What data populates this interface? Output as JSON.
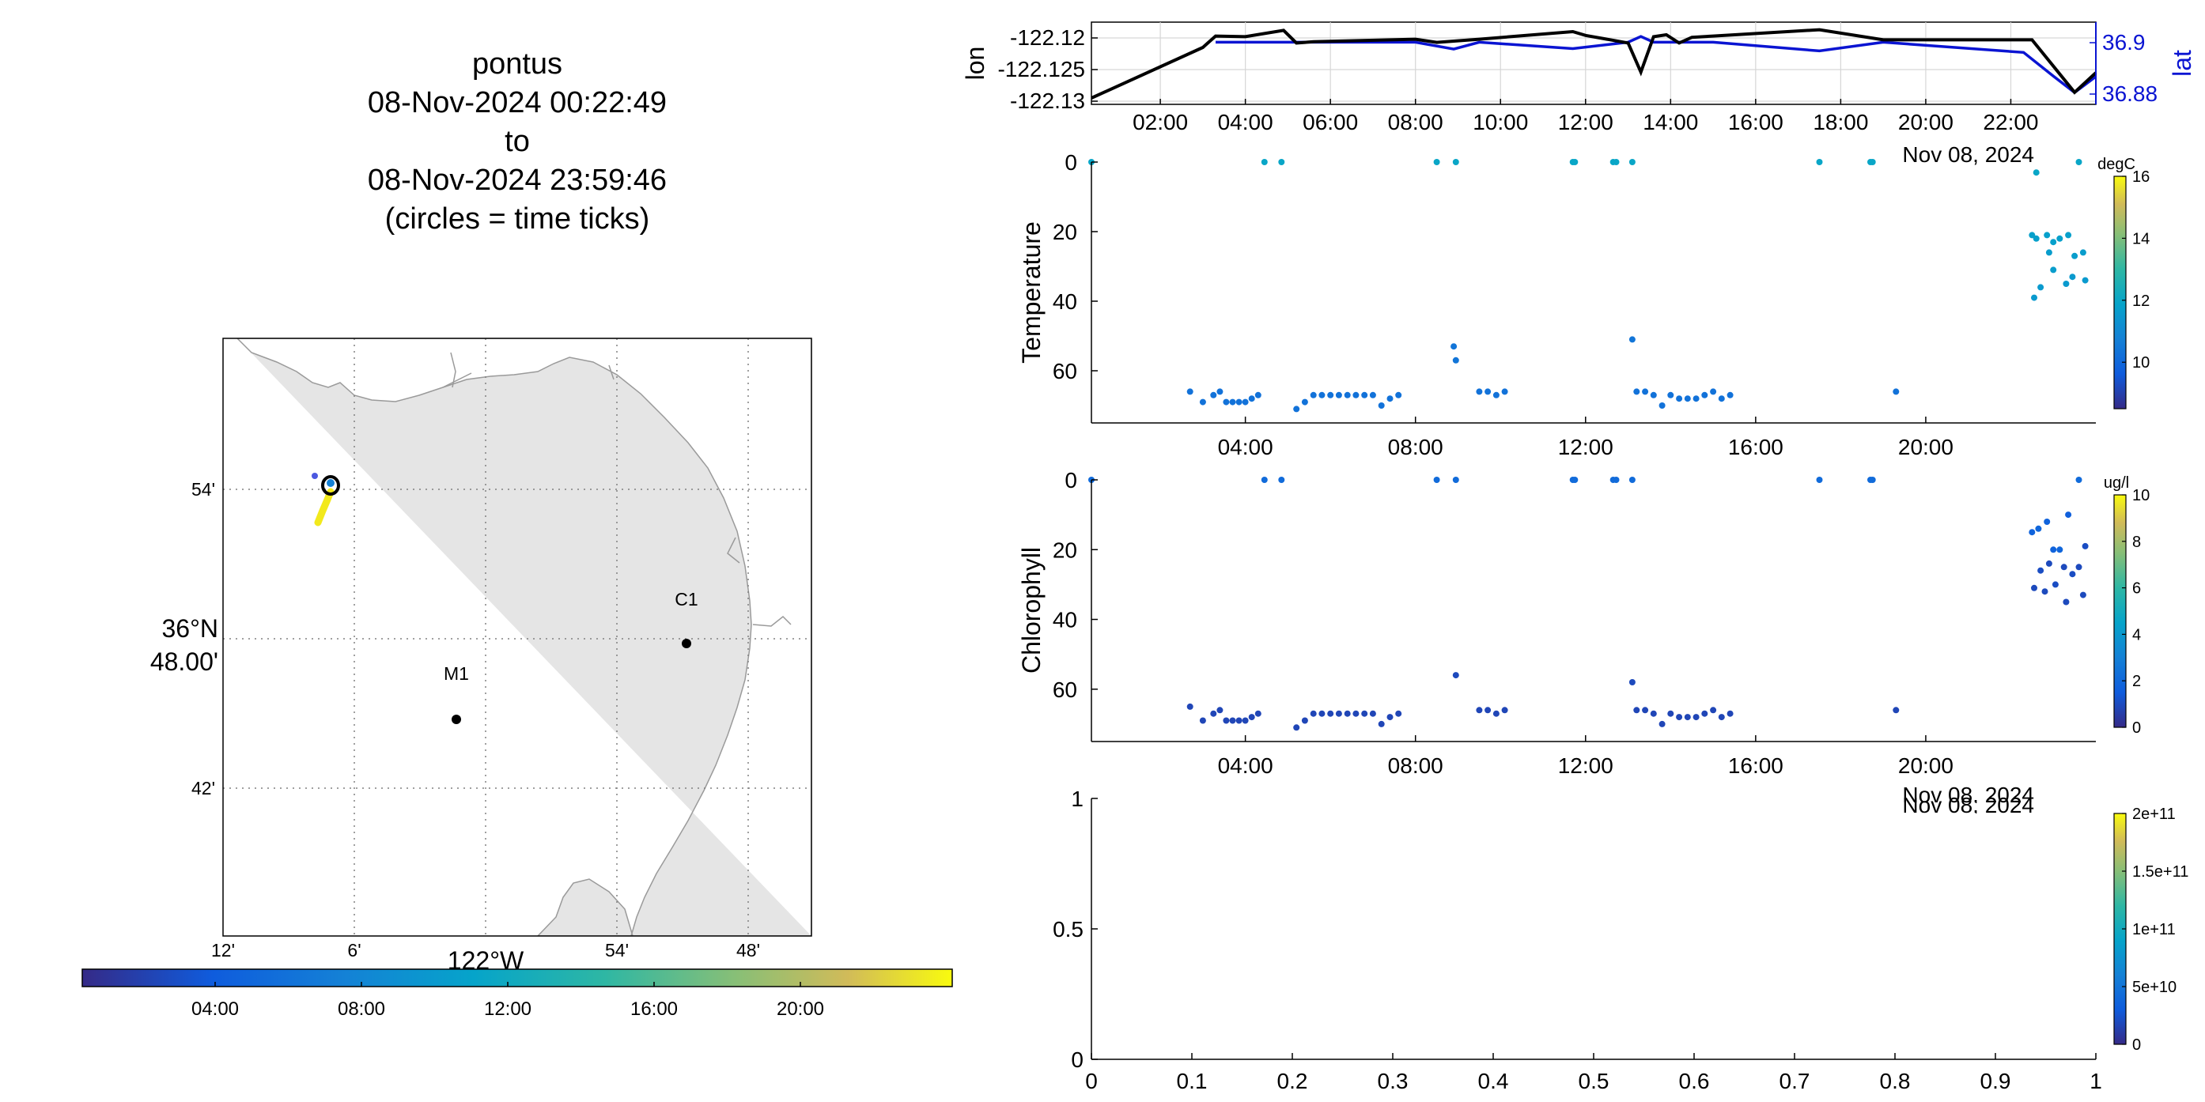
{
  "title": {
    "line1": "pontus",
    "line2": "08-Nov-2024 00:22:49",
    "line3": "to",
    "line4": "08-Nov-2024 23:59:46",
    "line5": "(circles = time ticks)"
  },
  "map": {
    "lat_tick_labels": [
      "54'",
      "36°N",
      "48.00'",
      "42'"
    ],
    "lon_tick_labels": [
      "12'",
      "6'",
      "122°W",
      "54'",
      "48'"
    ],
    "station_labels": [
      "C1",
      "M1"
    ],
    "time_colorbar": {
      "ticks": [
        "04:00",
        "08:00",
        "12:00",
        "16:00",
        "20:00"
      ]
    },
    "colors": {
      "land": "#e5e5e5",
      "coast": "#9a9a9a",
      "track_late": "#f2e91c",
      "track_early": "#4b58e0"
    }
  },
  "chart_data": [
    {
      "type": "line",
      "title": "",
      "xlabel": "",
      "ylabel": "lon",
      "ylabel_right": "lat",
      "date_label": "Nov 08, 2024",
      "x_tick_labels": [
        "02:00",
        "04:00",
        "06:00",
        "08:00",
        "10:00",
        "12:00",
        "14:00",
        "16:00",
        "18:00",
        "20:00",
        "22:00"
      ],
      "y_tick_labels": [
        "-122.12",
        "-122.125",
        "-122.13"
      ],
      "y_right_tick_labels": [
        "36.9",
        "36.88"
      ],
      "ylim": [
        -122.1305,
        -122.1175
      ],
      "ylim_right": [
        36.876,
        36.908
      ],
      "xlim_hours": [
        0.38,
        24.0
      ],
      "series": [
        {
          "name": "lon",
          "color": "#000000",
          "x_hours": [
            0.38,
            3.0,
            3.3,
            4.0,
            4.9,
            5.2,
            5.6,
            8.0,
            8.5,
            9.5,
            11.7,
            12.0,
            13.0,
            13.3,
            13.6,
            13.9,
            14.2,
            14.5,
            15.0,
            17.5,
            19.0,
            22.5,
            23.5,
            24.0
          ],
          "values": [
            -122.1295,
            -122.1215,
            -122.1197,
            -122.1198,
            -122.1188,
            -122.1208,
            -122.1206,
            -122.1202,
            -122.1207,
            -122.1202,
            -122.119,
            -122.1196,
            -122.1208,
            -122.1254,
            -122.1198,
            -122.1195,
            -122.1208,
            -122.1199,
            -122.1197,
            -122.1187,
            -122.1203,
            -122.1203,
            -122.1286,
            -122.1255
          ]
        },
        {
          "name": "lat",
          "color": "#0a14d2",
          "x_hours": [
            3.3,
            8.0,
            8.9,
            9.5,
            11.7,
            13.0,
            13.3,
            13.6,
            14.2,
            15.0,
            17.5,
            19.0,
            22.3,
            23.0,
            23.5,
            24.0
          ],
          "values": [
            36.9002,
            36.9002,
            36.8975,
            36.9002,
            36.8977,
            36.9002,
            36.9024,
            36.9002,
            36.9002,
            36.9002,
            36.8968,
            36.9002,
            36.8962,
            36.887,
            36.8806,
            36.8868
          ]
        }
      ]
    },
    {
      "type": "scatter",
      "title": "",
      "xlabel": "",
      "ylabel": "Temperature",
      "date_label": "Nov 08, 2024",
      "x_tick_labels": [
        "04:00",
        "08:00",
        "12:00",
        "16:00",
        "20:00"
      ],
      "y_tick_labels": [
        "0",
        "20",
        "40",
        "60"
      ],
      "ylim": [
        0,
        75
      ],
      "xlim_hours": [
        0.38,
        24.0
      ],
      "colorbar": {
        "unit": "degC",
        "ticks": [
          "10",
          "12",
          "14",
          "16"
        ],
        "range": [
          8.5,
          16
        ]
      },
      "points": {
        "x_hours": [
          0.38,
          4.45,
          4.85,
          8.5,
          8.95,
          11.7,
          11.75,
          12.65,
          12.72,
          13.1,
          17.5,
          18.7,
          18.75,
          22.6,
          23.6,
          2.7,
          3.0,
          3.25,
          3.4,
          3.55,
          3.7,
          3.85,
          4.0,
          4.15,
          4.3,
          5.2,
          5.4,
          5.6,
          5.8,
          6.0,
          6.2,
          6.4,
          6.6,
          6.8,
          7.0,
          7.2,
          7.4,
          7.6,
          8.9,
          8.95,
          9.5,
          9.7,
          9.9,
          10.1,
          13.1,
          13.2,
          13.4,
          13.6,
          13.8,
          14.0,
          14.2,
          14.4,
          14.6,
          14.8,
          15.0,
          15.2,
          15.4,
          19.3,
          22.5,
          22.6,
          22.85,
          23.0,
          23.15,
          23.35,
          22.7,
          23.0,
          23.3,
          23.5,
          23.7,
          22.55,
          22.9,
          23.45,
          23.75
        ],
        "y_depth": [
          0,
          0,
          0,
          0,
          0,
          0,
          0,
          0,
          0,
          0,
          0,
          0,
          0,
          3,
          0,
          66,
          69,
          67,
          66,
          69,
          69,
          69,
          69,
          68,
          67,
          71,
          69,
          67,
          67,
          67,
          67,
          67,
          67,
          67,
          67,
          70,
          68,
          67,
          53,
          57,
          66,
          66,
          67,
          66,
          51,
          66,
          66,
          67,
          70,
          67,
          68,
          68,
          68,
          67,
          66,
          68,
          67,
          66,
          21,
          22,
          21,
          23,
          22,
          21,
          36,
          31,
          35,
          27,
          26,
          39,
          26,
          33,
          34
        ],
        "values": [
          11.8,
          11.8,
          11.8,
          11.8,
          11.8,
          11.8,
          11.8,
          11.8,
          11.8,
          11.8,
          11.8,
          11.8,
          11.8,
          11.8,
          11.8,
          10.2,
          10.2,
          10.2,
          10.2,
          10.2,
          10.2,
          10.2,
          10.2,
          10.2,
          10.2,
          10.2,
          10.2,
          10.2,
          10.2,
          10.2,
          10.2,
          10.2,
          10.2,
          10.2,
          10.2,
          10.2,
          10.2,
          10.2,
          10.3,
          10.3,
          10.2,
          10.2,
          10.2,
          10.2,
          10.3,
          10.2,
          10.2,
          10.2,
          10.2,
          10.2,
          10.2,
          10.2,
          10.2,
          10.2,
          10.2,
          10.2,
          10.2,
          10.2,
          11.6,
          11.6,
          11.6,
          11.6,
          11.6,
          11.6,
          11.4,
          11.5,
          11.4,
          11.5,
          11.5,
          11.4,
          11.5,
          11.4,
          11.4
        ]
      }
    },
    {
      "type": "scatter",
      "title": "",
      "xlabel": "",
      "ylabel": "Chlorophyll",
      "date_label": "Nov 08, 2024",
      "x_tick_labels": [
        "04:00",
        "08:00",
        "12:00",
        "16:00",
        "20:00"
      ],
      "y_tick_labels": [
        "0",
        "20",
        "40",
        "60"
      ],
      "ylim": [
        0,
        75
      ],
      "xlim_hours": [
        0.38,
        24.0
      ],
      "colorbar": {
        "unit": "ug/l",
        "ticks": [
          "0",
          "2",
          "4",
          "6",
          "8",
          "10"
        ],
        "range": [
          0,
          10
        ]
      },
      "points": {
        "x_hours": [
          0.38,
          4.45,
          4.85,
          8.5,
          8.95,
          11.7,
          11.75,
          12.65,
          12.72,
          13.1,
          17.5,
          18.7,
          18.75,
          23.6,
          2.7,
          3.0,
          3.25,
          3.4,
          3.55,
          3.7,
          3.85,
          4.0,
          4.15,
          4.3,
          5.2,
          5.4,
          5.6,
          5.8,
          6.0,
          6.2,
          6.4,
          6.6,
          6.8,
          7.0,
          7.2,
          7.4,
          7.6,
          8.95,
          9.5,
          9.7,
          9.9,
          10.1,
          13.1,
          13.2,
          13.4,
          13.6,
          13.8,
          14.0,
          14.2,
          14.4,
          14.6,
          14.8,
          15.0,
          15.2,
          15.4,
          19.3,
          22.5,
          22.65,
          22.85,
          23.0,
          23.15,
          23.35,
          22.7,
          22.9,
          23.05,
          23.25,
          23.45,
          23.6,
          23.75,
          22.55,
          22.8,
          23.3,
          23.7
        ],
        "y_depth": [
          0,
          0,
          0,
          0,
          0,
          0,
          0,
          0,
          0,
          0,
          0,
          0,
          0,
          0,
          65,
          69,
          67,
          66,
          69,
          69,
          69,
          69,
          68,
          67,
          71,
          69,
          67,
          67,
          67,
          67,
          67,
          67,
          67,
          67,
          70,
          68,
          67,
          56,
          66,
          66,
          67,
          66,
          58,
          66,
          66,
          67,
          70,
          67,
          68,
          68,
          68,
          67,
          66,
          68,
          67,
          66,
          15,
          14,
          12,
          20,
          20,
          10,
          26,
          24,
          30,
          25,
          27,
          25,
          19,
          31,
          32,
          35,
          33
        ],
        "values": [
          2.0,
          2.0,
          2.0,
          2.0,
          2.0,
          2.0,
          2.0,
          2.0,
          2.0,
          2.0,
          2.0,
          2.0,
          2.0,
          2.0,
          0.8,
          0.8,
          0.8,
          0.8,
          0.8,
          0.8,
          0.8,
          0.8,
          0.8,
          0.8,
          0.8,
          0.8,
          0.8,
          0.8,
          0.8,
          0.8,
          0.8,
          0.8,
          0.8,
          0.8,
          0.8,
          0.8,
          0.8,
          0.9,
          0.8,
          0.8,
          0.8,
          0.8,
          0.9,
          0.8,
          0.8,
          0.8,
          0.8,
          0.8,
          0.8,
          0.8,
          0.8,
          0.8,
          0.8,
          0.8,
          0.8,
          0.8,
          1.7,
          1.8,
          1.7,
          1.7,
          1.8,
          1.6,
          1.0,
          0.9,
          1.0,
          0.9,
          1.0,
          0.9,
          1.0,
          0.9,
          0.9,
          0.9,
          0.9
        ]
      }
    },
    {
      "type": "scatter",
      "title": "",
      "xlabel": "",
      "ylabel": "",
      "x_tick_labels": [
        "0",
        "0.1",
        "0.2",
        "0.3",
        "0.4",
        "0.5",
        "0.6",
        "0.7",
        "0.8",
        "0.9",
        "1"
      ],
      "y_tick_labels": [
        "1",
        "0.5",
        "0"
      ],
      "xlim": [
        0,
        1
      ],
      "ylim": [
        0,
        1
      ],
      "colorbar": {
        "unit": "",
        "ticks": [
          "0",
          "5e+10",
          "1e+11",
          "1.5e+11",
          "2e+11"
        ],
        "range": [
          0,
          200000000000
        ]
      },
      "points": {
        "x": [],
        "y": []
      }
    }
  ]
}
